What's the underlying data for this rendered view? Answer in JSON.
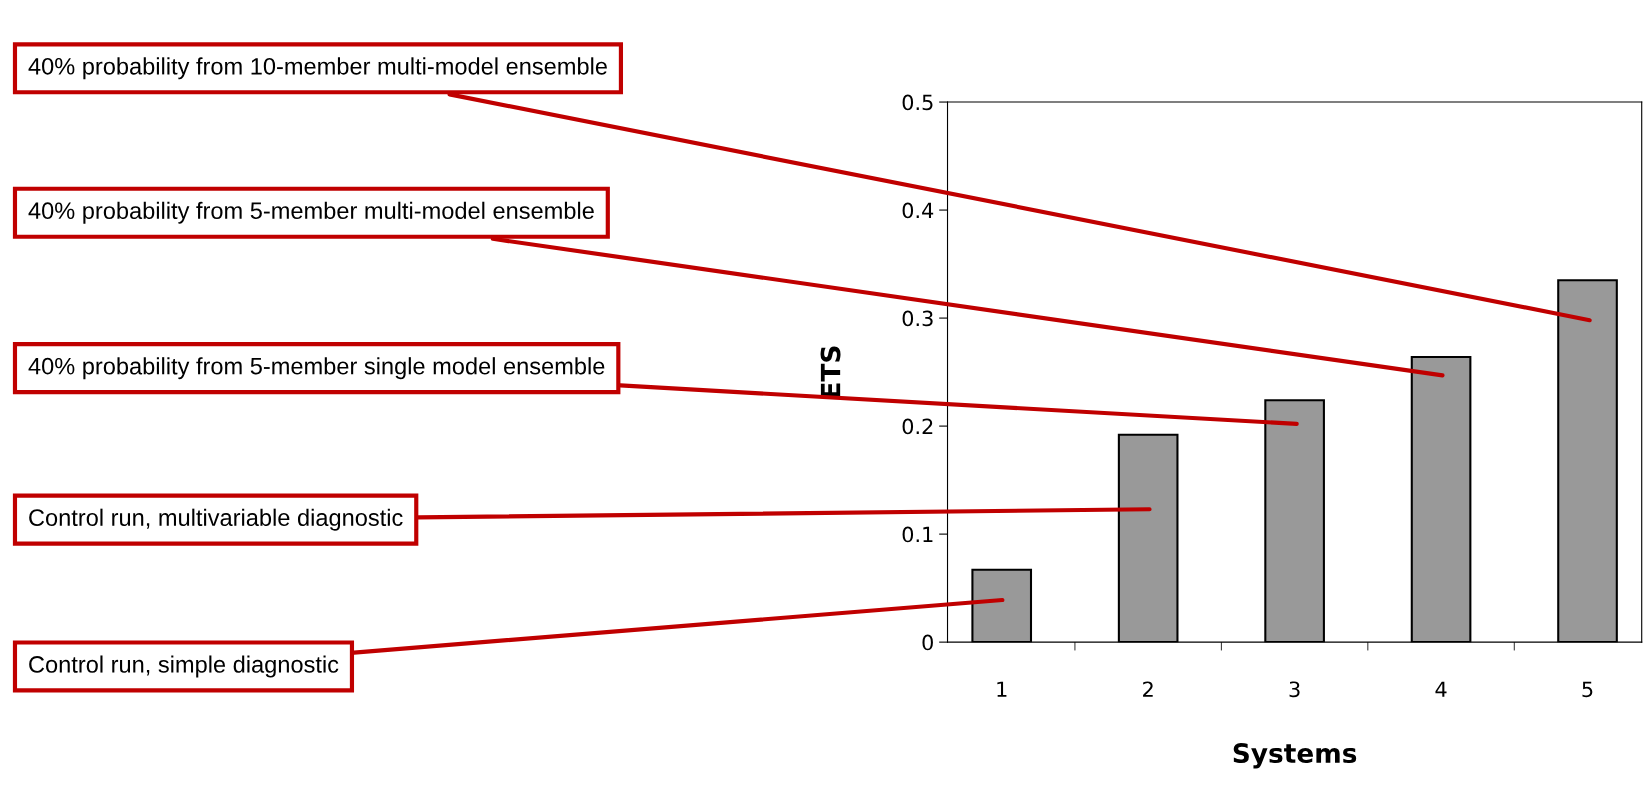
{
  "chart_data": {
    "type": "bar",
    "xlabel": "Systems",
    "ylabel": "ETS",
    "categories": [
      "1",
      "2",
      "3",
      "4",
      "5"
    ],
    "values": [
      0.067,
      0.192,
      0.224,
      0.264,
      0.335
    ],
    "color": "#999999",
    "ylim": [
      0,
      0.5
    ],
    "yticks": [
      0,
      0.1,
      0.2,
      0.3,
      0.4,
      0.5
    ],
    "grid": false,
    "annotations": [
      "40% probability from 10-member multi-model ensemble",
      "40% probability from 5-member multi-model ensemble",
      "40% probability from 5-member single model ensemble",
      "Control run, multivariable diagnostic",
      "Control run, simple diagnostic"
    ]
  }
}
